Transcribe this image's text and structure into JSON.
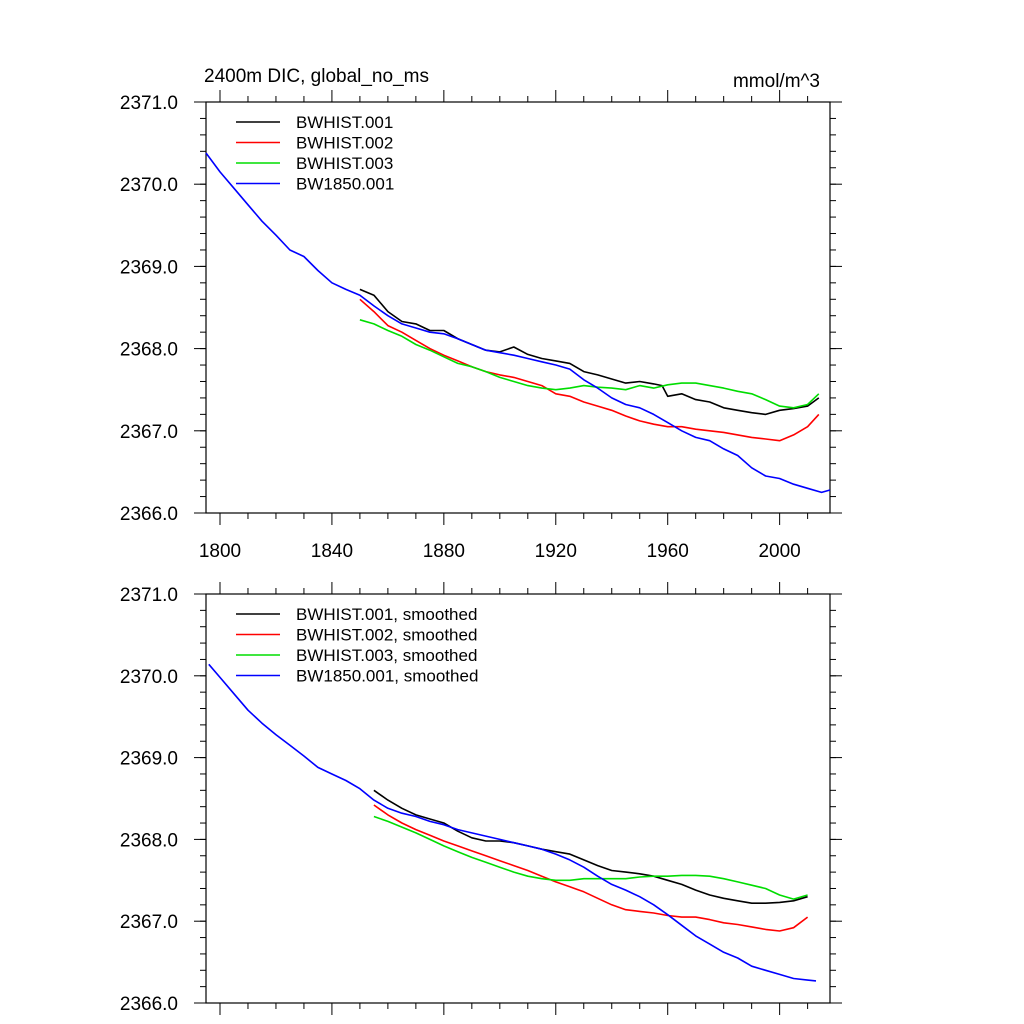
{
  "figure": {
    "title": "2400m DIC, global_no_ms",
    "units": "mmol/m^3"
  },
  "chart_data": [
    {
      "type": "line",
      "panel": "raw",
      "xlim": [
        1795,
        2018
      ],
      "ylim": [
        2366.0,
        2371.0
      ],
      "xticks": [
        1800,
        1840,
        1880,
        1920,
        1960,
        2000
      ],
      "xtick_labels": [
        "1800",
        "1840",
        "1880",
        "1920",
        "1960",
        "2000"
      ],
      "yticks": [
        2366.0,
        2367.0,
        2368.0,
        2369.0,
        2370.0,
        2371.0
      ],
      "ytick_labels": [
        "2366.0",
        "2367.0",
        "2368.0",
        "2369.0",
        "2370.0",
        "2371.0"
      ],
      "legend_position": "top-left",
      "series": [
        {
          "name": "BWHIST.001",
          "color": "#000000",
          "x": [
            1850,
            1855,
            1860,
            1865,
            1870,
            1875,
            1880,
            1885,
            1890,
            1895,
            1900,
            1905,
            1910,
            1915,
            1920,
            1925,
            1930,
            1935,
            1940,
            1945,
            1950,
            1955,
            1958,
            1960,
            1965,
            1970,
            1975,
            1980,
            1985,
            1990,
            1995,
            2000,
            2005,
            2010,
            2014
          ],
          "y": [
            2368.72,
            2368.65,
            2368.45,
            2368.33,
            2368.3,
            2368.22,
            2368.22,
            2368.12,
            2368.05,
            2367.98,
            2367.96,
            2368.02,
            2367.93,
            2367.88,
            2367.85,
            2367.82,
            2367.72,
            2367.68,
            2367.63,
            2367.58,
            2367.6,
            2367.57,
            2367.55,
            2367.42,
            2367.45,
            2367.38,
            2367.35,
            2367.28,
            2367.25,
            2367.22,
            2367.2,
            2367.25,
            2367.27,
            2367.3,
            2367.4
          ]
        },
        {
          "name": "BWHIST.002",
          "color": "#ff0000",
          "x": [
            1850,
            1855,
            1860,
            1865,
            1870,
            1875,
            1880,
            1885,
            1890,
            1895,
            1900,
            1905,
            1910,
            1915,
            1920,
            1925,
            1930,
            1935,
            1940,
            1945,
            1950,
            1955,
            1960,
            1965,
            1970,
            1975,
            1980,
            1985,
            1990,
            1995,
            2000,
            2005,
            2010,
            2014
          ],
          "y": [
            2368.6,
            2368.45,
            2368.28,
            2368.2,
            2368.1,
            2368.0,
            2367.92,
            2367.85,
            2367.78,
            2367.72,
            2367.68,
            2367.65,
            2367.6,
            2367.55,
            2367.45,
            2367.42,
            2367.35,
            2367.3,
            2367.25,
            2367.18,
            2367.12,
            2367.08,
            2367.05,
            2367.05,
            2367.02,
            2367.0,
            2366.98,
            2366.95,
            2366.92,
            2366.9,
            2366.88,
            2366.95,
            2367.05,
            2367.2
          ]
        },
        {
          "name": "BWHIST.003",
          "color": "#00dd00",
          "x": [
            1850,
            1855,
            1860,
            1865,
            1870,
            1875,
            1880,
            1885,
            1890,
            1895,
            1900,
            1905,
            1910,
            1915,
            1920,
            1925,
            1930,
            1935,
            1940,
            1945,
            1950,
            1955,
            1960,
            1965,
            1970,
            1975,
            1980,
            1985,
            1990,
            1995,
            2000,
            2005,
            2010,
            2014
          ],
          "y": [
            2368.35,
            2368.3,
            2368.22,
            2368.15,
            2368.05,
            2367.98,
            2367.9,
            2367.82,
            2367.78,
            2367.72,
            2367.65,
            2367.6,
            2367.55,
            2367.52,
            2367.5,
            2367.52,
            2367.55,
            2367.53,
            2367.52,
            2367.5,
            2367.55,
            2367.52,
            2367.56,
            2367.58,
            2367.58,
            2367.55,
            2367.52,
            2367.48,
            2367.45,
            2367.38,
            2367.3,
            2367.28,
            2367.32,
            2367.45
          ]
        },
        {
          "name": "BW1850.001",
          "color": "#0000ff",
          "x": [
            1795,
            1800,
            1805,
            1810,
            1815,
            1820,
            1825,
            1830,
            1835,
            1840,
            1845,
            1850,
            1855,
            1860,
            1865,
            1870,
            1875,
            1880,
            1885,
            1890,
            1895,
            1900,
            1905,
            1910,
            1915,
            1920,
            1925,
            1930,
            1935,
            1940,
            1945,
            1950,
            1955,
            1960,
            1965,
            1970,
            1975,
            1980,
            1985,
            1990,
            1995,
            2000,
            2005,
            2010,
            2015,
            2018
          ],
          "y": [
            2370.38,
            2370.15,
            2369.95,
            2369.75,
            2369.55,
            2369.38,
            2369.2,
            2369.12,
            2368.95,
            2368.8,
            2368.72,
            2368.65,
            2368.52,
            2368.4,
            2368.3,
            2368.25,
            2368.2,
            2368.18,
            2368.12,
            2368.05,
            2367.98,
            2367.95,
            2367.92,
            2367.88,
            2367.84,
            2367.8,
            2367.75,
            2367.62,
            2367.52,
            2367.4,
            2367.32,
            2367.28,
            2367.2,
            2367.1,
            2367.0,
            2366.92,
            2366.88,
            2366.78,
            2366.7,
            2366.55,
            2366.45,
            2366.42,
            2366.35,
            2366.3,
            2366.25,
            2366.28
          ]
        }
      ]
    },
    {
      "type": "line",
      "panel": "smoothed",
      "xlim": [
        1795,
        2018
      ],
      "ylim": [
        2366.0,
        2371.0
      ],
      "xticks": [
        1800,
        1840,
        1880,
        1920,
        1960,
        2000
      ],
      "yticks": [
        2366.0,
        2367.0,
        2368.0,
        2369.0,
        2370.0,
        2371.0
      ],
      "ytick_labels": [
        "2366.0",
        "2367.0",
        "2368.0",
        "2369.0",
        "2370.0",
        "2371.0"
      ],
      "legend_position": "top-left",
      "series": [
        {
          "name": "BWHIST.001, smoothed",
          "color": "#000000",
          "x": [
            1855,
            1860,
            1865,
            1870,
            1875,
            1880,
            1885,
            1890,
            1895,
            1900,
            1905,
            1910,
            1915,
            1920,
            1925,
            1930,
            1935,
            1940,
            1945,
            1950,
            1955,
            1960,
            1965,
            1970,
            1975,
            1980,
            1985,
            1990,
            1995,
            2000,
            2005,
            2010
          ],
          "y": [
            2368.6,
            2368.48,
            2368.38,
            2368.3,
            2368.25,
            2368.2,
            2368.1,
            2368.02,
            2367.98,
            2367.98,
            2367.96,
            2367.92,
            2367.88,
            2367.85,
            2367.82,
            2367.75,
            2367.68,
            2367.62,
            2367.6,
            2367.58,
            2367.55,
            2367.5,
            2367.45,
            2367.38,
            2367.32,
            2367.28,
            2367.25,
            2367.22,
            2367.22,
            2367.23,
            2367.25,
            2367.3
          ]
        },
        {
          "name": "BWHIST.002, smoothed",
          "color": "#ff0000",
          "x": [
            1855,
            1860,
            1865,
            1870,
            1875,
            1880,
            1885,
            1890,
            1895,
            1900,
            1905,
            1910,
            1915,
            1920,
            1925,
            1930,
            1935,
            1940,
            1945,
            1950,
            1955,
            1960,
            1965,
            1970,
            1975,
            1980,
            1985,
            1990,
            1995,
            2000,
            2005,
            2010
          ],
          "y": [
            2368.42,
            2368.3,
            2368.2,
            2368.12,
            2368.05,
            2367.98,
            2367.92,
            2367.86,
            2367.8,
            2367.74,
            2367.68,
            2367.62,
            2367.55,
            2367.48,
            2367.42,
            2367.36,
            2367.28,
            2367.2,
            2367.14,
            2367.12,
            2367.1,
            2367.07,
            2367.05,
            2367.05,
            2367.02,
            2366.98,
            2366.96,
            2366.93,
            2366.9,
            2366.88,
            2366.92,
            2367.05
          ]
        },
        {
          "name": "BWHIST.003, smoothed",
          "color": "#00dd00",
          "x": [
            1855,
            1860,
            1865,
            1870,
            1875,
            1880,
            1885,
            1890,
            1895,
            1900,
            1905,
            1910,
            1915,
            1920,
            1925,
            1930,
            1935,
            1940,
            1945,
            1950,
            1955,
            1960,
            1965,
            1970,
            1975,
            1980,
            1985,
            1990,
            1995,
            2000,
            2005,
            2010
          ],
          "y": [
            2368.28,
            2368.22,
            2368.15,
            2368.08,
            2368.0,
            2367.92,
            2367.85,
            2367.78,
            2367.72,
            2367.66,
            2367.6,
            2367.55,
            2367.52,
            2367.5,
            2367.5,
            2367.52,
            2367.52,
            2367.52,
            2367.52,
            2367.54,
            2367.55,
            2367.55,
            2367.56,
            2367.56,
            2367.55,
            2367.52,
            2367.48,
            2367.44,
            2367.4,
            2367.32,
            2367.27,
            2367.32
          ]
        },
        {
          "name": "BW1850.001, smoothed",
          "color": "#0000ff",
          "x": [
            1796,
            1800,
            1805,
            1810,
            1815,
            1820,
            1825,
            1830,
            1835,
            1840,
            1845,
            1850,
            1855,
            1860,
            1865,
            1870,
            1875,
            1880,
            1885,
            1890,
            1895,
            1900,
            1905,
            1910,
            1915,
            1920,
            1925,
            1930,
            1935,
            1940,
            1945,
            1950,
            1955,
            1960,
            1965,
            1970,
            1975,
            1980,
            1985,
            1990,
            1995,
            2000,
            2005,
            2010,
            2013
          ],
          "y": [
            2370.14,
            2369.98,
            2369.78,
            2369.58,
            2369.42,
            2369.28,
            2369.15,
            2369.02,
            2368.88,
            2368.8,
            2368.72,
            2368.62,
            2368.48,
            2368.38,
            2368.32,
            2368.28,
            2368.22,
            2368.18,
            2368.12,
            2368.08,
            2368.04,
            2368.0,
            2367.96,
            2367.92,
            2367.88,
            2367.82,
            2367.75,
            2367.66,
            2367.55,
            2367.45,
            2367.38,
            2367.3,
            2367.2,
            2367.08,
            2366.95,
            2366.82,
            2366.72,
            2366.62,
            2366.55,
            2366.45,
            2366.4,
            2366.35,
            2366.3,
            2366.28,
            2366.27
          ]
        }
      ]
    }
  ]
}
